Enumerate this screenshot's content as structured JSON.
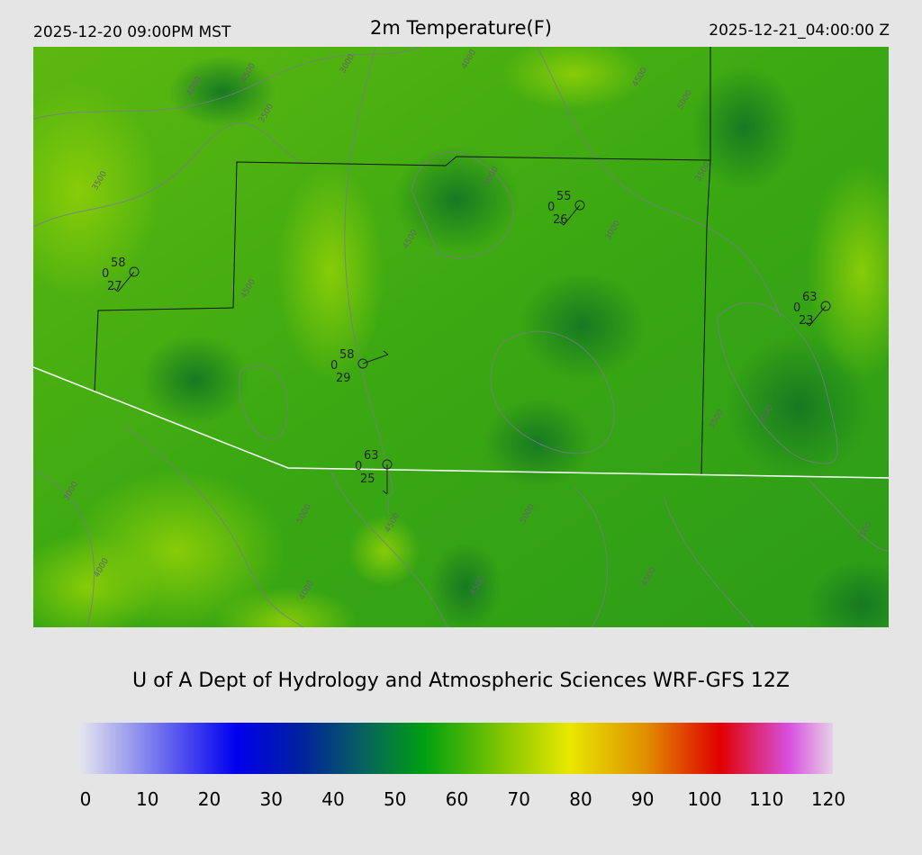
{
  "header": {
    "local_time": "2025-12-20 09:00PM MST",
    "title": "2m Temperature(F)",
    "utc_time": "2025-12-21_04:00:00 Z"
  },
  "credit": "U of A Dept of Hydrology and Atmospheric Sciences WRF-GFS 12Z",
  "colorbar": {
    "ticks": [
      "0",
      "10",
      "20",
      "30",
      "40",
      "50",
      "60",
      "70",
      "80",
      "90",
      "100",
      "110",
      "120"
    ],
    "unit": "F",
    "stops": [
      [
        "0",
        "#e6e6ee"
      ],
      [
        "25",
        "#0000ee"
      ],
      [
        "35",
        "#0020a0"
      ],
      [
        "45",
        "#086060"
      ],
      [
        "55",
        "#00a010"
      ],
      [
        "68",
        "#88c800"
      ],
      [
        "78",
        "#e8e800"
      ],
      [
        "90",
        "#e09000"
      ],
      [
        "102",
        "#e00000"
      ],
      [
        "113",
        "#d850e0"
      ],
      [
        "120",
        "#e6d0e6"
      ]
    ]
  },
  "map": {
    "colors": {
      "base": "#44b010",
      "dark": "#1a8a20",
      "light": "#80c808",
      "border": "#000000",
      "state_line": "#ffffff",
      "contour": "#7a7a8a"
    },
    "contour_labels": [
      "4000",
      "4500",
      "3500",
      "3000",
      "3500",
      "4000",
      "4500",
      "5000",
      "5000",
      "4500",
      "4500",
      "3500",
      "3000",
      "3000",
      "4000",
      "5000",
      "4500",
      "5000",
      "4500",
      "4500",
      "5000",
      "3500",
      "4000",
      "4500"
    ],
    "stations": [
      {
        "temp": "58",
        "dew": "27",
        "wind": "0"
      },
      {
        "temp": "55",
        "dew": "26",
        "wind": "0"
      },
      {
        "temp": "63",
        "dew": "23",
        "wind": "0"
      },
      {
        "temp": "58",
        "dew": "29",
        "wind": "0"
      },
      {
        "temp": "63",
        "dew": "25",
        "wind": "0"
      }
    ]
  }
}
